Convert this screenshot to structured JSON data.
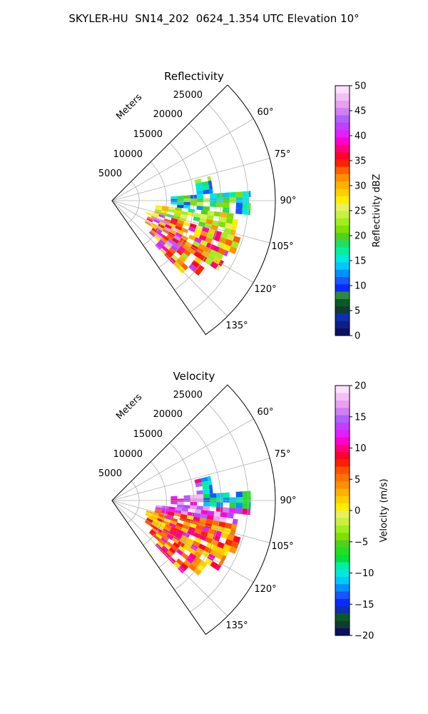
{
  "figure": {
    "title": "SKYLER-HU  SN14_202  0624_1.354 UTC Elevation 10°"
  },
  "chart_data": [
    {
      "type": "polar_sector",
      "title": "Reflectivity",
      "range_label": "Meters",
      "radial_ticks": [
        "5000",
        "10000",
        "15000",
        "20000",
        "25000"
      ],
      "radial_values": [
        5000,
        10000,
        15000,
        20000,
        25000
      ],
      "r_max": 30000,
      "azimuth_range_deg": [
        45,
        145
      ],
      "azimuth_ticks": [
        "60°",
        "75°",
        "90°",
        "105°",
        "120°",
        "135°"
      ],
      "azimuth_values": [
        60,
        75,
        90,
        105,
        120,
        135
      ],
      "grid": true,
      "colorbar": {
        "label": "Reflectivity dBZ",
        "vmin": 0,
        "vmax": 50,
        "ticks": [
          "0",
          "5",
          "10",
          "15",
          "20",
          "25",
          "30",
          "35",
          "40",
          "45",
          "50"
        ],
        "tick_values": [
          0,
          5,
          10,
          15,
          20,
          25,
          30,
          35,
          40,
          45,
          50
        ],
        "colors": [
          "#0b1060",
          "#0e1e86",
          "#0d2fb0",
          "#0e3d30",
          "#0a5a28",
          "#2e8a3a",
          "#0a2bff",
          "#1a55ff",
          "#0090ff",
          "#00c8ff",
          "#00e8e0",
          "#00f0a0",
          "#20e060",
          "#50d020",
          "#80e000",
          "#a0ee20",
          "#c8f040",
          "#e8f060",
          "#ffee00",
          "#ffd000",
          "#ffb000",
          "#ff9000",
          "#ff6000",
          "#ff2000",
          "#ff0030",
          "#ff0080",
          "#ff00d0",
          "#e020ff",
          "#c040ff",
          "#b060ff",
          "#d080f0",
          "#e8a0f0",
          "#f4c0f4",
          "#fce0fc"
        ]
      },
      "echo_summary": "Precipitation echoes fill the eastern/southeastern sector between about 8000 and 27000 m, strongest (35-45 dBZ) near azimuth 110-125."
    },
    {
      "type": "polar_sector",
      "title": "Velocity",
      "range_label": "Meters",
      "radial_ticks": [
        "5000",
        "10000",
        "15000",
        "20000",
        "25000"
      ],
      "radial_values": [
        5000,
        10000,
        15000,
        20000,
        25000
      ],
      "r_max": 30000,
      "azimuth_range_deg": [
        45,
        145
      ],
      "azimuth_ticks": [
        "60°",
        "75°",
        "90°",
        "105°",
        "120°",
        "135°"
      ],
      "azimuth_values": [
        60,
        75,
        90,
        105,
        120,
        135
      ],
      "grid": true,
      "colorbar": {
        "label": "Velocity (m/s)",
        "vmin": -20,
        "vmax": 20,
        "ticks": [
          "−20",
          "−15",
          "−10",
          "−5",
          "0",
          "5",
          "10",
          "15",
          "20"
        ],
        "tick_values": [
          -20,
          -15,
          -10,
          -5,
          0,
          5,
          10,
          15,
          20
        ],
        "colors": [
          "#0b1060",
          "#0e3d30",
          "#0a5a28",
          "#0d2fb0",
          "#0a2bff",
          "#1a55ff",
          "#0090ff",
          "#00c8ff",
          "#00e8e0",
          "#00f0a0",
          "#00e040",
          "#20e020",
          "#50d020",
          "#80e000",
          "#a0ee20",
          "#c8f040",
          "#e8f060",
          "#ffee00",
          "#ffd000",
          "#ffb000",
          "#ff9000",
          "#ff7000",
          "#ff5000",
          "#ff2000",
          "#ff0030",
          "#ff0080",
          "#ff00d0",
          "#e020ff",
          "#c040ff",
          "#b060ff",
          "#d080f0",
          "#e8a0f0",
          "#f4c0f4",
          "#fce0fc"
        ]
      },
      "echo_summary": "Mostly outbound (0 to 15 m/s) velocities east and southeast of the radar, with inbound (-10 to -15 m/s) near the northern edge around azimuth 80-90."
    }
  ]
}
